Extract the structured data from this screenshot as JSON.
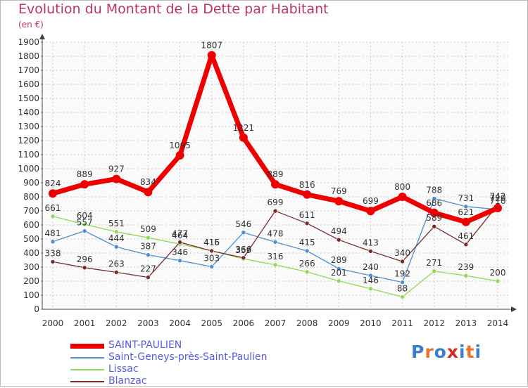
{
  "title": "Evolution du Montant de la Dette par Habitant",
  "subtitle": "(en €)",
  "brand": {
    "letters": [
      "P",
      "r",
      "o",
      "x",
      "i",
      "t",
      "i"
    ],
    "colors": [
      "#3a7fd0",
      "#e8742a",
      "#3a7fd0",
      "#d52a2a",
      "#3a7fd0",
      "#e8742a",
      "#3a7fd0"
    ]
  },
  "chart_data": {
    "type": "line",
    "x": [
      "2000",
      "2001",
      "2002",
      "2003",
      "2004",
      "2005",
      "2006",
      "2007",
      "2008",
      "2009",
      "2010",
      "2011",
      "2012",
      "2013",
      "2014"
    ],
    "yticks": [
      "0",
      "100",
      "200",
      "300",
      "400",
      "500",
      "600",
      "700",
      "800",
      "900",
      "1000",
      "1100",
      "1200",
      "1300",
      "1400",
      "1500",
      "1600",
      "1700",
      "1800",
      "1900"
    ],
    "ylim": [
      0,
      1900
    ],
    "grid": true,
    "legend_position": "bottom-left",
    "series": [
      {
        "name": "SAINT-PAULIEN",
        "color": "#ee0000",
        "values": [
          824,
          889,
          927,
          834,
          1095,
          1807,
          1221,
          889,
          816,
          769,
          699,
          800,
          686,
          621,
          720
        ],
        "labels": [
          "824",
          "889",
          "927",
          "834",
          "1095",
          "1807",
          "1221",
          "889",
          "816",
          "769",
          "699",
          "800",
          "686",
          "621",
          "720"
        ]
      },
      {
        "name": "Saint-Geneys-près-Saint-Paulien",
        "color": "#4c8ed0",
        "values": [
          481,
          557,
          444,
          387,
          346,
          303,
          546,
          478,
          415,
          289,
          240,
          192,
          788,
          731,
          710
        ],
        "labels": [
          "481",
          "557",
          "444",
          "387",
          "346",
          "303",
          "546",
          "478",
          "415",
          "289",
          "240",
          "192",
          "788",
          "731",
          "710"
        ]
      },
      {
        "name": "Lissac",
        "color": "#8ed85a",
        "values": [
          661,
          604,
          551,
          509,
          464,
          416,
          359,
          316,
          266,
          201,
          146,
          88,
          271,
          239,
          200
        ],
        "labels": [
          "661",
          "604",
          "551",
          "509",
          "464",
          "416",
          "359",
          "316",
          "266",
          "201",
          "146",
          "88",
          "271",
          "239",
          "200"
        ]
      },
      {
        "name": "Blanzac",
        "color": "#7a2a2a",
        "values": [
          338,
          296,
          263,
          227,
          477,
          415,
          366,
          699,
          611,
          494,
          413,
          340,
          589,
          461,
          742
        ],
        "labels": [
          "338",
          "296",
          "263",
          "227",
          "477",
          "415",
          "366",
          "699",
          "611",
          "494",
          "413",
          "340",
          "589",
          "461",
          "742"
        ]
      }
    ]
  }
}
